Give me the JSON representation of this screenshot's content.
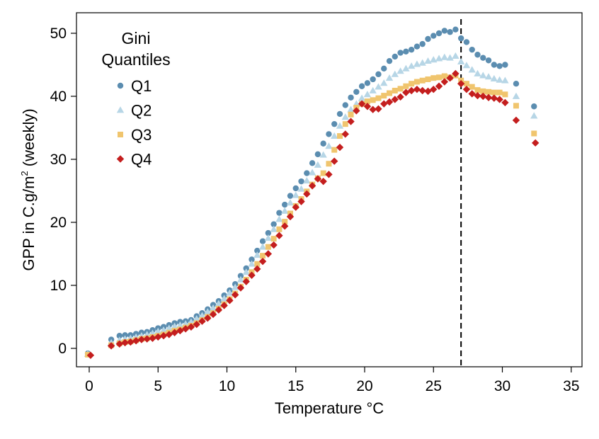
{
  "chart_data": {
    "type": "scatter",
    "xlabel": "Temperature °C",
    "ylabel_parts": {
      "main": "GPP in C.g/m",
      "sup": "2",
      "tail": " (weekly)"
    },
    "xlim": [
      -1,
      36
    ],
    "ylim": [
      -3,
      53
    ],
    "xticks": [
      0,
      5,
      10,
      15,
      20,
      25,
      30,
      35
    ],
    "yticks": [
      0,
      10,
      20,
      30,
      40,
      50
    ],
    "grid": false,
    "reference_line": {
      "x": 27,
      "style": "dashed"
    },
    "legend": {
      "title_line1": "Gini",
      "title_line2": "Quantiles",
      "position": "top-left"
    },
    "series": [
      {
        "name": "Q1",
        "marker": "circle",
        "color": "#5b8db0",
        "points": [
          [
            -0.1,
            -0.8
          ],
          [
            1.6,
            1.4
          ],
          [
            2.2,
            2.0
          ],
          [
            2.6,
            2.1
          ],
          [
            3.0,
            2.1
          ],
          [
            3.4,
            2.3
          ],
          [
            3.8,
            2.5
          ],
          [
            4.2,
            2.6
          ],
          [
            4.6,
            2.9
          ],
          [
            5.0,
            3.2
          ],
          [
            5.4,
            3.4
          ],
          [
            5.8,
            3.7
          ],
          [
            6.2,
            4.0
          ],
          [
            6.6,
            4.2
          ],
          [
            7.0,
            4.3
          ],
          [
            7.4,
            4.5
          ],
          [
            7.8,
            5.1
          ],
          [
            8.2,
            5.6
          ],
          [
            8.6,
            6.2
          ],
          [
            9.0,
            6.9
          ],
          [
            9.4,
            7.5
          ],
          [
            9.8,
            8.4
          ],
          [
            10.2,
            9.2
          ],
          [
            10.6,
            10.2
          ],
          [
            11.0,
            11.5
          ],
          [
            11.4,
            12.7
          ],
          [
            11.8,
            14.1
          ],
          [
            12.2,
            15.5
          ],
          [
            12.6,
            17.0
          ],
          [
            13.0,
            18.3
          ],
          [
            13.4,
            19.7
          ],
          [
            13.8,
            21.5
          ],
          [
            14.2,
            22.8
          ],
          [
            14.6,
            24.2
          ],
          [
            15.0,
            25.4
          ],
          [
            15.4,
            26.5
          ],
          [
            15.8,
            27.8
          ],
          [
            16.2,
            29.4
          ],
          [
            16.6,
            30.8
          ],
          [
            17.0,
            32.5
          ],
          [
            17.4,
            34.0
          ],
          [
            17.8,
            35.6
          ],
          [
            18.2,
            37.2
          ],
          [
            18.6,
            38.6
          ],
          [
            19.0,
            39.8
          ],
          [
            19.4,
            40.7
          ],
          [
            19.8,
            41.6
          ],
          [
            20.2,
            42.1
          ],
          [
            20.6,
            42.7
          ],
          [
            21.0,
            43.5
          ],
          [
            21.4,
            44.4
          ],
          [
            21.8,
            45.6
          ],
          [
            22.2,
            46.3
          ],
          [
            22.6,
            46.9
          ],
          [
            23.0,
            47.1
          ],
          [
            23.4,
            47.4
          ],
          [
            23.8,
            47.9
          ],
          [
            24.2,
            48.3
          ],
          [
            24.6,
            49.1
          ],
          [
            25.0,
            49.6
          ],
          [
            25.4,
            50.0
          ],
          [
            25.8,
            50.4
          ],
          [
            26.2,
            50.2
          ],
          [
            26.6,
            50.6
          ],
          [
            27.0,
            49.2
          ],
          [
            27.4,
            48.6
          ],
          [
            27.8,
            47.4
          ],
          [
            28.2,
            46.6
          ],
          [
            28.6,
            46.1
          ],
          [
            29.0,
            45.7
          ],
          [
            29.4,
            45.0
          ],
          [
            29.8,
            44.8
          ],
          [
            30.2,
            45.0
          ],
          [
            31.0,
            42.0
          ],
          [
            32.3,
            38.4
          ]
        ]
      },
      {
        "name": "Q2",
        "marker": "triangle",
        "color": "#b7d6e6",
        "points": [
          [
            -0.1,
            -0.9
          ],
          [
            1.6,
            0.9
          ],
          [
            2.2,
            1.3
          ],
          [
            2.6,
            1.5
          ],
          [
            3.0,
            1.6
          ],
          [
            3.4,
            1.8
          ],
          [
            3.8,
            2.0
          ],
          [
            4.2,
            2.2
          ],
          [
            4.6,
            2.4
          ],
          [
            5.0,
            2.7
          ],
          [
            5.4,
            2.9
          ],
          [
            5.8,
            3.2
          ],
          [
            6.2,
            3.5
          ],
          [
            6.6,
            3.7
          ],
          [
            7.0,
            3.9
          ],
          [
            7.4,
            4.2
          ],
          [
            7.8,
            4.7
          ],
          [
            8.2,
            5.2
          ],
          [
            8.6,
            5.8
          ],
          [
            9.0,
            6.4
          ],
          [
            9.4,
            7.1
          ],
          [
            9.8,
            7.9
          ],
          [
            10.2,
            8.8
          ],
          [
            10.6,
            9.7
          ],
          [
            11.0,
            10.9
          ],
          [
            11.4,
            12.1
          ],
          [
            11.8,
            13.4
          ],
          [
            12.2,
            14.8
          ],
          [
            12.6,
            16.1
          ],
          [
            13.0,
            17.5
          ],
          [
            13.4,
            18.9
          ],
          [
            13.8,
            20.5
          ],
          [
            14.2,
            21.8
          ],
          [
            14.6,
            23.1
          ],
          [
            15.0,
            24.3
          ],
          [
            15.4,
            25.3
          ],
          [
            15.8,
            26.6
          ],
          [
            16.2,
            27.9
          ],
          [
            16.6,
            29.1
          ],
          [
            17.0,
            30.7
          ],
          [
            17.4,
            32.1
          ],
          [
            17.8,
            33.7
          ],
          [
            18.2,
            35.3
          ],
          [
            18.6,
            36.7
          ],
          [
            19.0,
            37.9
          ],
          [
            19.4,
            38.8
          ],
          [
            19.8,
            39.7
          ],
          [
            20.2,
            40.3
          ],
          [
            20.6,
            40.9
          ],
          [
            21.0,
            41.5
          ],
          [
            21.4,
            42.1
          ],
          [
            21.8,
            42.9
          ],
          [
            22.2,
            43.5
          ],
          [
            22.6,
            44.0
          ],
          [
            23.0,
            44.4
          ],
          [
            23.4,
            44.8
          ],
          [
            23.8,
            45.1
          ],
          [
            24.2,
            45.3
          ],
          [
            24.6,
            45.6
          ],
          [
            25.0,
            45.8
          ],
          [
            25.4,
            46.0
          ],
          [
            25.8,
            46.2
          ],
          [
            26.2,
            46.1
          ],
          [
            26.6,
            46.4
          ],
          [
            27.0,
            45.5
          ],
          [
            27.4,
            44.9
          ],
          [
            27.8,
            44.2
          ],
          [
            28.2,
            43.6
          ],
          [
            28.6,
            43.3
          ],
          [
            29.0,
            43.1
          ],
          [
            29.4,
            42.8
          ],
          [
            29.8,
            42.6
          ],
          [
            30.2,
            42.5
          ],
          [
            31.0,
            40.0
          ],
          [
            32.3,
            36.9
          ]
        ]
      },
      {
        "name": "Q3",
        "marker": "square",
        "color": "#f0c56e",
        "points": [
          [
            -0.1,
            -1.0
          ],
          [
            1.6,
            0.5
          ],
          [
            2.2,
            0.8
          ],
          [
            2.6,
            1.0
          ],
          [
            3.0,
            1.1
          ],
          [
            3.4,
            1.3
          ],
          [
            3.8,
            1.5
          ],
          [
            4.2,
            1.6
          ],
          [
            4.6,
            1.8
          ],
          [
            5.0,
            2.0
          ],
          [
            5.4,
            2.2
          ],
          [
            5.8,
            2.5
          ],
          [
            6.2,
            2.8
          ],
          [
            6.6,
            3.0
          ],
          [
            7.0,
            3.3
          ],
          [
            7.4,
            3.6
          ],
          [
            7.8,
            4.0
          ],
          [
            8.2,
            4.5
          ],
          [
            8.6,
            5.0
          ],
          [
            9.0,
            5.6
          ],
          [
            9.4,
            6.3
          ],
          [
            9.8,
            7.0
          ],
          [
            10.2,
            7.8
          ],
          [
            10.6,
            8.7
          ],
          [
            11.0,
            9.8
          ],
          [
            11.4,
            10.9
          ],
          [
            11.8,
            12.1
          ],
          [
            12.2,
            13.4
          ],
          [
            12.6,
            14.7
          ],
          [
            13.0,
            16.1
          ],
          [
            13.4,
            17.4
          ],
          [
            13.8,
            18.9
          ],
          [
            14.2,
            20.1
          ],
          [
            14.6,
            21.4
          ],
          [
            15.0,
            22.6
          ],
          [
            15.4,
            23.7
          ],
          [
            15.8,
            24.9
          ],
          [
            16.2,
            26.0
          ],
          [
            16.6,
            27.0
          ],
          [
            17.0,
            27.8
          ],
          [
            17.4,
            29.3
          ],
          [
            17.8,
            31.5
          ],
          [
            18.2,
            33.7
          ],
          [
            18.6,
            35.6
          ],
          [
            19.0,
            37.1
          ],
          [
            19.4,
            38.2
          ],
          [
            19.8,
            38.8
          ],
          [
            20.2,
            39.2
          ],
          [
            20.6,
            39.4
          ],
          [
            21.0,
            39.7
          ],
          [
            21.4,
            40.1
          ],
          [
            21.8,
            40.5
          ],
          [
            22.2,
            40.9
          ],
          [
            22.6,
            41.2
          ],
          [
            23.0,
            41.6
          ],
          [
            23.4,
            42.0
          ],
          [
            23.8,
            42.3
          ],
          [
            24.2,
            42.5
          ],
          [
            24.6,
            42.7
          ],
          [
            25.0,
            42.9
          ],
          [
            25.4,
            43.0
          ],
          [
            25.8,
            43.2
          ],
          [
            26.2,
            43.0
          ],
          [
            26.6,
            43.3
          ],
          [
            27.0,
            42.5
          ],
          [
            27.4,
            42.0
          ],
          [
            27.8,
            41.5
          ],
          [
            28.2,
            41.0
          ],
          [
            28.6,
            40.8
          ],
          [
            29.0,
            40.7
          ],
          [
            29.4,
            40.6
          ],
          [
            29.8,
            40.6
          ],
          [
            30.2,
            40.3
          ],
          [
            31.0,
            38.5
          ],
          [
            32.3,
            34.1
          ]
        ]
      },
      {
        "name": "Q4",
        "marker": "diamond",
        "color": "#c41e1e",
        "points": [
          [
            0.1,
            -1.1
          ],
          [
            1.6,
            0.4
          ],
          [
            2.2,
            0.7
          ],
          [
            2.6,
            0.9
          ],
          [
            3.0,
            1.0
          ],
          [
            3.4,
            1.2
          ],
          [
            3.8,
            1.4
          ],
          [
            4.2,
            1.5
          ],
          [
            4.6,
            1.6
          ],
          [
            5.0,
            1.8
          ],
          [
            5.4,
            2.0
          ],
          [
            5.8,
            2.2
          ],
          [
            6.2,
            2.5
          ],
          [
            6.6,
            2.8
          ],
          [
            7.0,
            3.1
          ],
          [
            7.4,
            3.4
          ],
          [
            7.8,
            3.8
          ],
          [
            8.2,
            4.3
          ],
          [
            8.6,
            4.8
          ],
          [
            9.0,
            5.4
          ],
          [
            9.4,
            6.1
          ],
          [
            9.8,
            6.8
          ],
          [
            10.2,
            7.6
          ],
          [
            10.6,
            8.5
          ],
          [
            11.0,
            9.6
          ],
          [
            11.4,
            10.6
          ],
          [
            11.8,
            11.6
          ],
          [
            12.2,
            12.6
          ],
          [
            12.6,
            13.8
          ],
          [
            13.0,
            15.0
          ],
          [
            13.4,
            16.4
          ],
          [
            13.8,
            17.9
          ],
          [
            14.2,
            19.4
          ],
          [
            14.6,
            20.9
          ],
          [
            15.0,
            22.4
          ],
          [
            15.4,
            23.3
          ],
          [
            15.8,
            24.5
          ],
          [
            16.2,
            25.8
          ],
          [
            16.6,
            26.9
          ],
          [
            17.0,
            26.5
          ],
          [
            17.4,
            27.6
          ],
          [
            17.8,
            29.7
          ],
          [
            18.2,
            31.9
          ],
          [
            18.6,
            34.0
          ],
          [
            19.0,
            36.0
          ],
          [
            19.4,
            37.7
          ],
          [
            19.8,
            38.8
          ],
          [
            20.2,
            38.4
          ],
          [
            20.6,
            37.9
          ],
          [
            21.0,
            38.0
          ],
          [
            21.4,
            38.8
          ],
          [
            21.8,
            39.1
          ],
          [
            22.2,
            39.5
          ],
          [
            22.6,
            39.9
          ],
          [
            23.0,
            40.6
          ],
          [
            23.4,
            40.9
          ],
          [
            23.8,
            41.1
          ],
          [
            24.2,
            40.9
          ],
          [
            24.6,
            40.8
          ],
          [
            25.0,
            41.1
          ],
          [
            25.4,
            41.6
          ],
          [
            25.8,
            42.3
          ],
          [
            26.2,
            42.9
          ],
          [
            26.6,
            43.6
          ],
          [
            27.0,
            42.0
          ],
          [
            27.4,
            41.1
          ],
          [
            27.8,
            40.4
          ],
          [
            28.2,
            40.1
          ],
          [
            28.6,
            40.0
          ],
          [
            29.0,
            39.8
          ],
          [
            29.4,
            39.7
          ],
          [
            29.8,
            39.5
          ],
          [
            30.2,
            39.0
          ],
          [
            31.0,
            36.2
          ],
          [
            32.4,
            32.6
          ]
        ]
      }
    ]
  }
}
